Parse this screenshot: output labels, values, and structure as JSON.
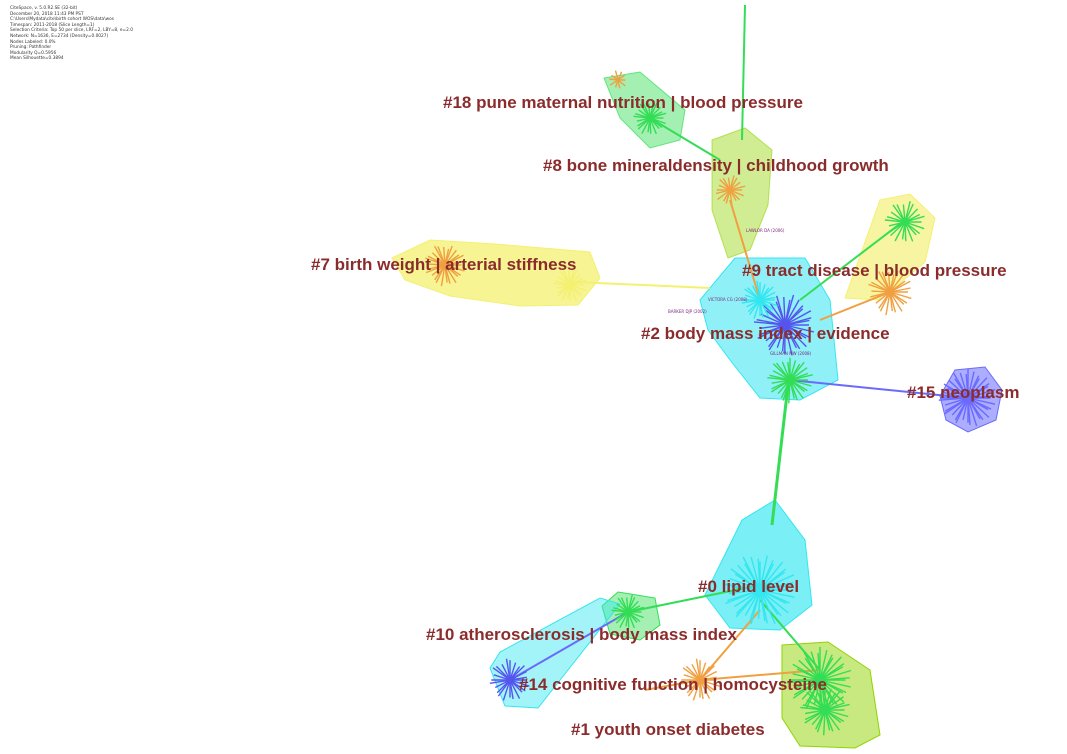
{
  "meta_lines": [
    "CiteSpace, v. 5.0.R2.SE (32-bit)",
    "December 20, 2018 11:43 PM PST",
    "C:\\Users\\Mydata\\cite\\birth cohort WOS\\data\\wos",
    "Timespan: 2011-2018 (Slice Length=1)",
    "Selection Criteria: Top 50 per slice, LRF=2, LBY=8, e=2.0",
    "Network: N=1636, E=2734 (Density=0.0027)",
    "Nodes Labeled: 0.0%",
    "Pruning: Pathfinder",
    "Modularity Q=0.5956",
    "Mean Silhouette=0.3894"
  ],
  "clusters": [
    {
      "id": "c18",
      "label": "#18 pune maternal nutrition |  blood pressure"
    },
    {
      "id": "c8",
      "label": "#8 bone mineraldensity |  childhood growth"
    },
    {
      "id": "c7",
      "label": "#7 birth weight |  arterial stiffness"
    },
    {
      "id": "c9",
      "label": "#9 tract disease |  blood pressure"
    },
    {
      "id": "c2",
      "label": "#2 body mass index |  evidence"
    },
    {
      "id": "c15",
      "label": "#15 neoplasm"
    },
    {
      "id": "c0",
      "label": "#0 lipid level"
    },
    {
      "id": "c10",
      "label": "#10 atherosclerosis |  body mass index"
    },
    {
      "id": "c14",
      "label": "#14 cognitive function |  homocysteine"
    },
    {
      "id": "c1",
      "label": "#1 youth onset diabetes"
    }
  ],
  "node_labels": [
    {
      "id": "n1",
      "label": "VICTORA CG (2008)"
    },
    {
      "id": "n2",
      "label": "BARKER DJP (2002)"
    },
    {
      "id": "n3",
      "label": "LAWLOR DA (2006)"
    },
    {
      "id": "n4",
      "label": "GILLMAN MW (2008)"
    }
  ],
  "colors": {
    "label": "#8b2c2c",
    "green": "#33dd55",
    "cyan": "#33e6f0",
    "yellow": "#f4f070",
    "orange": "#f0a040",
    "blue": "#5555ee",
    "purple": "#6a6aff"
  }
}
